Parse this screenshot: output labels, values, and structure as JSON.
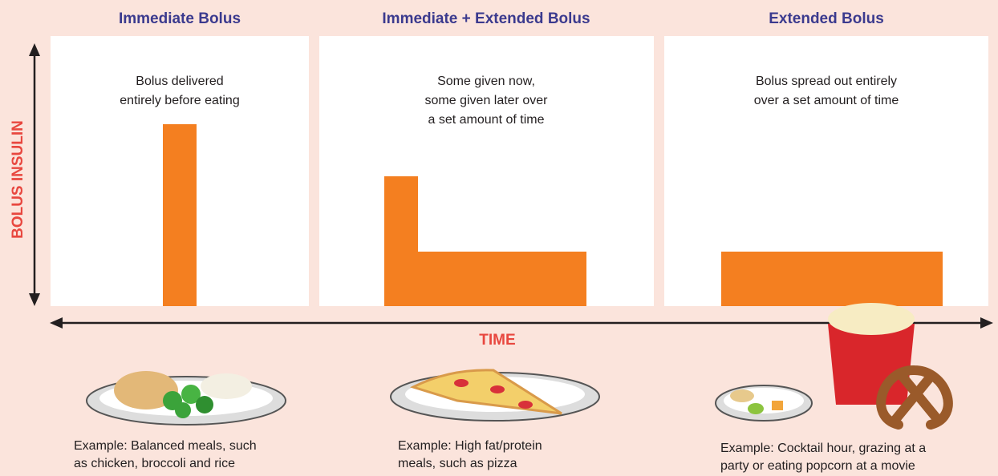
{
  "axes": {
    "y_label": "BOLUS INSULIN",
    "x_label": "TIME"
  },
  "panels": [
    {
      "title": "Immediate Bolus",
      "description": [
        "Bolus delivered",
        "entirely before eating"
      ],
      "example": [
        "Example: Balanced meals, such",
        "as chicken, broccoli and rice"
      ]
    },
    {
      "title": "Immediate + Extended Bolus",
      "description": [
        "Some given now,",
        "some given later over",
        "a set amount of time"
      ],
      "example": [
        "Example: High fat/protein",
        "meals, such as pizza"
      ]
    },
    {
      "title": "Extended Bolus",
      "description": [
        "Bolus spread out entirely",
        "over a set amount of time"
      ],
      "example": [
        "Example: Cocktail hour, grazing at a",
        "party or eating popcorn at a movie"
      ]
    }
  ]
}
